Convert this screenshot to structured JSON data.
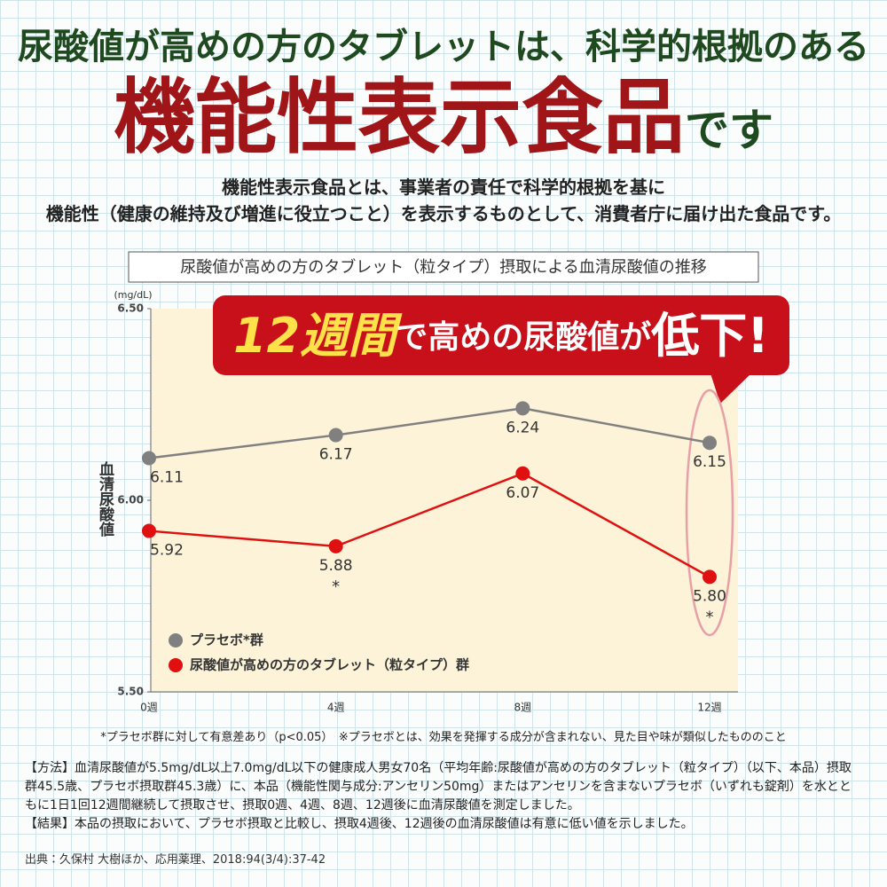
{
  "headline": {
    "line1": "尿酸値が高めの方のタブレットは、科学的根拠のある",
    "main": "機能性表示食品",
    "suffix": "です"
  },
  "description": [
    "機能性表示食品とは、事業者の責任で科学的根拠を基に",
    "機能性（健康の維持及び増進に役立つこと）を表示するものとして、消費者庁に届け出た食品です。"
  ],
  "chart_data": {
    "type": "line",
    "title": "尿酸値が高めの方のタブレット（粒タイプ）摂取による血清尿酸値の推移",
    "unit": "(mg/dL)",
    "y_label": "血清尿酸値",
    "callout": {
      "emphasis": "12週間",
      "middle": "で高めの尿酸値が",
      "end": "低下!"
    },
    "categories": [
      "0週",
      "4週",
      "8週",
      "12週"
    ],
    "series": [
      {
        "name": "プラセボ*群",
        "color": "#808080",
        "values": [
          6.11,
          6.17,
          6.24,
          6.15
        ],
        "value_labels": [
          "6.11",
          "6.17",
          "6.24",
          "6.15"
        ]
      },
      {
        "name": "尿酸値が高めの方のタブレット（粒タイプ）群",
        "color": "#e01010",
        "values": [
          5.92,
          5.88,
          6.07,
          5.8
        ],
        "value_labels": [
          "5.92",
          "5.88",
          "6.07",
          "5.80"
        ],
        "significance": [
          null,
          "*",
          null,
          "*"
        ]
      }
    ],
    "ylim": [
      5.5,
      6.5
    ],
    "yticks": [
      {
        "value": 5.5,
        "label": "5.50"
      },
      {
        "value": 6,
        "label": "6.00"
      },
      {
        "value": 6.5,
        "label": "6.50"
      }
    ],
    "legend": "lower-left"
  },
  "footnote": "*プラセボ群に対して有意差あり（p<0.05）　※プラセボとは、効果を発揮する成分が含まれない、見た目や味が類似したもののこと",
  "method": [
    "【方法】血清尿酸値が5.5mg/dL以上7.0mg/dL以下の健康成人男女70名（平均年齢:尿酸値が高めの方のタブレット（粒タイプ）（以下、本品）摂取群45.5歳、プラセボ摂取群45.3歳）に、本品（機能性関与成分:アンセリン50mg）またはアンセリンを含まないプラセボ（いずれも錠剤）を水とともに1日1回12週間継続して摂取させ、摂取0週、4週、8週、12週後に血清尿酸値を測定しました。",
    "【結果】本品の摂取において、プラセボ摂取と比較し、摂取4週後、12週後の血清尿酸値は有意に低い値を示しました。"
  ],
  "source": "出典：久保村 大樹ほか、応用薬理、2018:94(3/4):37-42"
}
